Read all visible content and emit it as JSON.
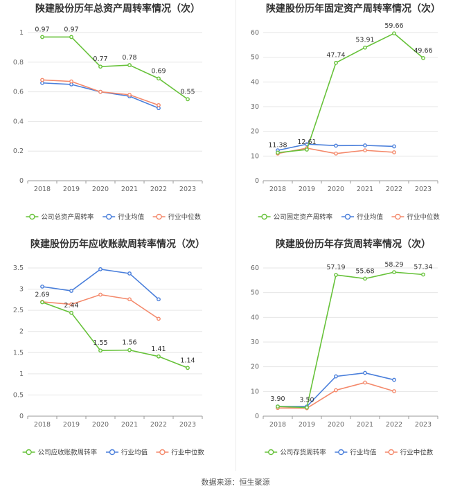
{
  "source": "数据来源：恒生聚源",
  "chart_data": [
    {
      "type": "line",
      "title": "陕建股份历年总资产周转率情况（次）",
      "x": [
        "2018",
        "2019",
        "2020",
        "2021",
        "2022",
        "2023"
      ],
      "ylim": [
        0,
        1
      ],
      "yticks": [
        "0",
        "0.2",
        "0.4",
        "0.6",
        "0.8",
        "1"
      ],
      "series": [
        {
          "name": "公司总资产周转率",
          "color": "#67c23a",
          "values": [
            0.97,
            0.97,
            0.77,
            0.78,
            0.69,
            0.55
          ],
          "labels": [
            "0.97",
            "0.97",
            "0.77",
            "0.78",
            "0.69",
            "0.55"
          ]
        },
        {
          "name": "行业均值",
          "color": "#4a7fdb",
          "values": [
            0.66,
            0.65,
            0.6,
            0.57,
            0.49,
            null
          ]
        },
        {
          "name": "行业中位数",
          "color": "#f4896b",
          "values": [
            0.68,
            0.67,
            0.6,
            0.58,
            0.51,
            null
          ]
        }
      ]
    },
    {
      "type": "line",
      "title": "陕建股份历年固定资产周转率情况（次）",
      "x": [
        "2018",
        "2019",
        "2020",
        "2021",
        "2022",
        "2023"
      ],
      "ylim": [
        0,
        60
      ],
      "yticks": [
        "0",
        "10",
        "20",
        "30",
        "40",
        "50",
        "60"
      ],
      "series": [
        {
          "name": "公司固定资产周转率",
          "color": "#67c23a",
          "values": [
            11.38,
            12.61,
            47.74,
            53.91,
            59.66,
            49.66
          ],
          "labels": [
            "11.38",
            "12.61",
            "47.74",
            "53.91",
            "59.66",
            "49.66"
          ]
        },
        {
          "name": "行业均值",
          "color": "#4a7fdb",
          "values": [
            12.3,
            14.8,
            14.2,
            14.3,
            13.9,
            null
          ]
        },
        {
          "name": "行业中位数",
          "color": "#f4896b",
          "values": [
            11.0,
            13.2,
            11.0,
            12.3,
            11.5,
            null
          ]
        }
      ]
    },
    {
      "type": "line",
      "title": "陕建股份历年应收账款周转率情况（次）",
      "x": [
        "2018",
        "2019",
        "2020",
        "2021",
        "2022",
        "2023"
      ],
      "ylim": [
        0,
        3.5
      ],
      "yticks": [
        "0",
        "0.5",
        "1",
        "1.5",
        "2",
        "2.5",
        "3",
        "3.5"
      ],
      "series": [
        {
          "name": "公司应收账款周转率",
          "color": "#67c23a",
          "values": [
            2.69,
            2.44,
            1.55,
            1.56,
            1.41,
            1.14
          ],
          "labels": [
            "2.69",
            "2.44",
            "1.55",
            "1.56",
            "1.41",
            "1.14"
          ]
        },
        {
          "name": "行业均值",
          "color": "#4a7fdb",
          "values": [
            3.06,
            2.96,
            3.47,
            3.37,
            2.76,
            null
          ]
        },
        {
          "name": "行业中位数",
          "color": "#f4896b",
          "values": [
            2.7,
            2.64,
            2.87,
            2.76,
            2.3,
            null
          ]
        }
      ]
    },
    {
      "type": "line",
      "title": "陕建股份历年存货周转率情况（次）",
      "x": [
        "2018",
        "2019",
        "2020",
        "2021",
        "2022",
        "2023"
      ],
      "ylim": [
        0,
        60
      ],
      "yticks": [
        "0",
        "10",
        "20",
        "30",
        "40",
        "50",
        "60"
      ],
      "series": [
        {
          "name": "公司存货周转率",
          "color": "#67c23a",
          "values": [
            3.9,
            3.5,
            57.19,
            55.68,
            58.29,
            57.34
          ],
          "labels": [
            "3.90",
            "3.50",
            "57.19",
            "55.68",
            "58.29",
            "57.34"
          ]
        },
        {
          "name": "行业均值",
          "color": "#4a7fdb",
          "values": [
            3.9,
            3.9,
            16.1,
            17.5,
            14.7,
            null
          ]
        },
        {
          "name": "行业中位数",
          "color": "#f4896b",
          "values": [
            3.3,
            3.2,
            10.5,
            13.6,
            10.1,
            null
          ]
        }
      ]
    }
  ]
}
